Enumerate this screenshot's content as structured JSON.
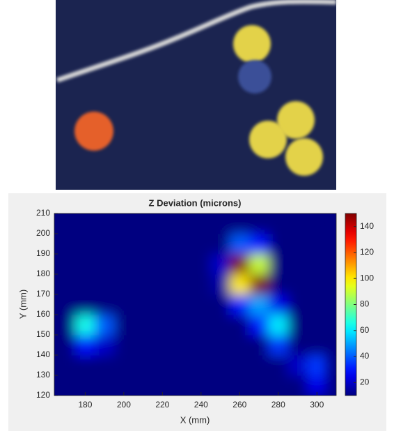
{
  "chart_data": {
    "type": "heatmap",
    "title": "Z Deviation (microns)",
    "x_label": "X (mm)",
    "y_label": "Y (mm)",
    "colormap": "jet",
    "x": [
      170,
      180,
      190,
      200,
      210,
      220,
      230,
      240,
      250,
      260,
      270,
      280,
      290,
      300
    ],
    "y": [
      125,
      135,
      145,
      155,
      165,
      175,
      185,
      195,
      205
    ],
    "z": [
      [
        10,
        10,
        10,
        10,
        10,
        10,
        10,
        10,
        10,
        10,
        10,
        10,
        10,
        25
      ],
      [
        10,
        10,
        10,
        10,
        10,
        10,
        10,
        10,
        10,
        10,
        10,
        10,
        20,
        35
      ],
      [
        10,
        30,
        20,
        10,
        10,
        10,
        10,
        10,
        10,
        10,
        10,
        35,
        10,
        10
      ],
      [
        10,
        65,
        40,
        10,
        10,
        10,
        10,
        10,
        10,
        10,
        30,
        60,
        10,
        10
      ],
      [
        10,
        10,
        10,
        10,
        10,
        10,
        10,
        10,
        10,
        30,
        50,
        25,
        10,
        10
      ],
      [
        10,
        10,
        10,
        10,
        10,
        10,
        10,
        10,
        15,
        100,
        150,
        10,
        10,
        10
      ],
      [
        10,
        10,
        10,
        10,
        10,
        10,
        10,
        10,
        20,
        150,
        90,
        10,
        10,
        10
      ],
      [
        10,
        10,
        10,
        10,
        10,
        10,
        10,
        10,
        10,
        40,
        30,
        10,
        10,
        10
      ],
      [
        10,
        10,
        10,
        10,
        10,
        10,
        10,
        10,
        10,
        10,
        10,
        10,
        10,
        10
      ]
    ],
    "xlim": [
      164,
      310
    ],
    "ylim": [
      120,
      210
    ],
    "xticks": [
      180,
      200,
      220,
      240,
      260,
      280,
      300
    ],
    "yticks": [
      120,
      130,
      140,
      150,
      160,
      170,
      180,
      190,
      200,
      210
    ],
    "clim": [
      10,
      150
    ],
    "cticks": [
      20,
      40,
      60,
      80,
      100,
      120,
      140
    ]
  }
}
